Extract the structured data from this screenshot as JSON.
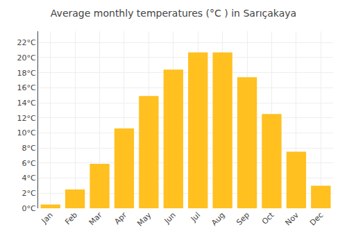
{
  "chart_data": {
    "type": "bar",
    "title": "Average monthly temperatures (°C ) in Sarıçakaya",
    "categories": [
      "Jan",
      "Feb",
      "Mar",
      "Apr",
      "May",
      "Jun",
      "Jul",
      "Aug",
      "Sep",
      "Oct",
      "Nov",
      "Dec"
    ],
    "values": [
      0.5,
      2.5,
      5.9,
      10.6,
      14.9,
      18.4,
      20.7,
      20.7,
      17.4,
      12.5,
      7.5,
      3.0
    ],
    "color": "#FFC020",
    "ylim": [
      0,
      23.5
    ],
    "yticks": [
      {
        "value": 0,
        "label": "0°C"
      },
      {
        "value": 2,
        "label": "2°C"
      },
      {
        "value": 4,
        "label": "4°C"
      },
      {
        "value": 6,
        "label": "6°C"
      },
      {
        "value": 8,
        "label": "8°C"
      },
      {
        "value": 10,
        "label": "10°C"
      },
      {
        "value": 12,
        "label": "12°C"
      },
      {
        "value": 14,
        "label": "14°C"
      },
      {
        "value": 16,
        "label": "16°C"
      },
      {
        "value": 18,
        "label": "18°C"
      },
      {
        "value": 20,
        "label": "20°C"
      },
      {
        "value": 22,
        "label": "22°C"
      }
    ],
    "grid": true
  }
}
